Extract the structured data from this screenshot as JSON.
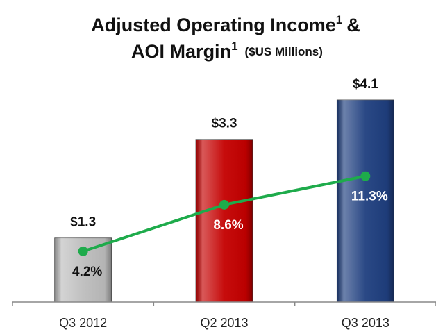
{
  "chart_data": {
    "type": "bar_line",
    "title": {
      "line1": "Adjusted Operating Income",
      "line1_note": "1",
      "line1_end": "&",
      "line2": "AOI Margin",
      "line2_note": "1",
      "subtitle": "($US Millions)"
    },
    "categories": [
      "Q3 2012",
      "Q2 2013",
      "Q3 2013"
    ],
    "series": [
      {
        "type": "bar",
        "values": [
          1.3,
          3.3,
          4.1
        ],
        "value_labels": [
          "$1.3",
          "$3.3",
          "$4.1"
        ],
        "colors": [
          "#bdbdbd",
          "#c40000",
          "#1f3f7f"
        ]
      },
      {
        "type": "line",
        "axis": "y2",
        "values": [
          4.2,
          8.6,
          11.3
        ],
        "value_labels": [
          "4.2%",
          "8.6%",
          "11.3%"
        ],
        "color": "#1eab4b"
      }
    ],
    "ylim": [
      0,
      5
    ],
    "y2lim": [
      -0.6,
      22.7
    ]
  }
}
